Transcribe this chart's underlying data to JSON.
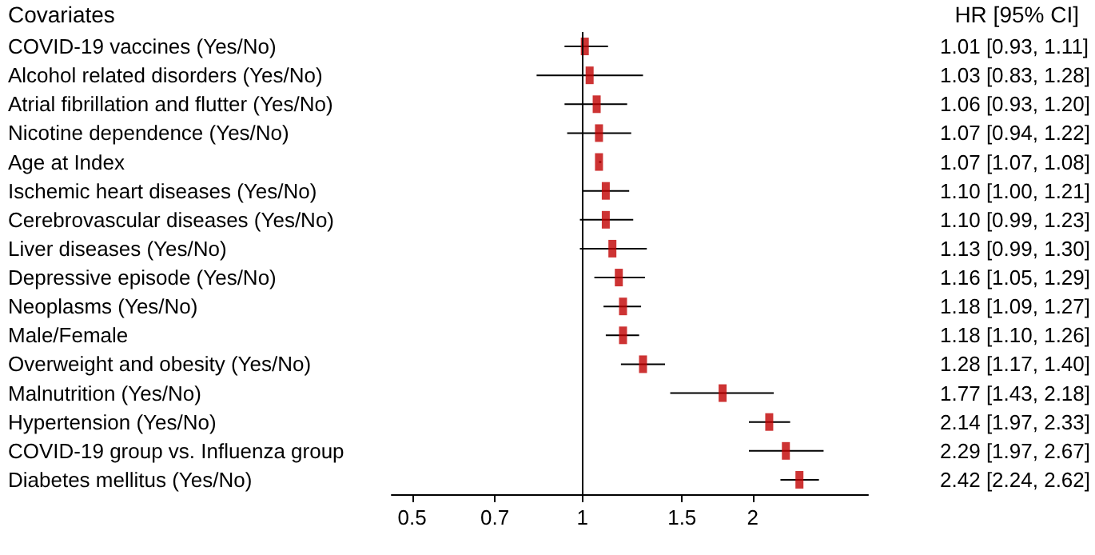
{
  "chart_data": {
    "type": "scatter",
    "orientation": "horizontal",
    "ylabel": "Covariates",
    "annotations": [
      "HR [95% CI]"
    ],
    "categories": [
      "COVID-19 vaccines (Yes/No)",
      "Alcohol related disorders (Yes/No)",
      "Atrial fibrillation and flutter (Yes/No)",
      "Nicotine dependence (Yes/No)",
      "Age at Index",
      "Ischemic heart diseases (Yes/No)",
      "Cerebrovascular diseases (Yes/No)",
      "Liver diseases (Yes/No)",
      "Depressive episode (Yes/No)",
      "Neoplasms (Yes/No)",
      "Male/Female",
      "Overweight and obesity (Yes/No)",
      "Malnutrition (Yes/No)",
      "Hypertension (Yes/No)",
      "COVID-19 group vs. Influenza group",
      "Diabetes mellitus (Yes/No)"
    ],
    "values": [
      1.01,
      1.03,
      1.06,
      1.07,
      1.07,
      1.1,
      1.1,
      1.13,
      1.16,
      1.18,
      1.18,
      1.28,
      1.77,
      2.14,
      2.29,
      2.42
    ],
    "errors": [
      [
        0.93,
        1.11
      ],
      [
        0.83,
        1.28
      ],
      [
        0.93,
        1.2
      ],
      [
        0.94,
        1.22
      ],
      [
        1.07,
        1.08
      ],
      [
        1.0,
        1.21
      ],
      [
        0.99,
        1.23
      ],
      [
        0.99,
        1.3
      ],
      [
        1.05,
        1.29
      ],
      [
        1.09,
        1.27
      ],
      [
        1.1,
        1.26
      ],
      [
        1.17,
        1.4
      ],
      [
        1.43,
        2.18
      ],
      [
        1.97,
        2.33
      ],
      [
        1.97,
        2.67
      ],
      [
        2.24,
        2.62
      ]
    ],
    "value_labels": [
      "1.01 [0.93, 1.11]",
      "1.03 [0.83, 1.28]",
      "1.06 [0.93, 1.20]",
      "1.07 [0.94, 1.22]",
      "1.07 [1.07, 1.08]",
      "1.10 [1.00, 1.21]",
      "1.10 [0.99, 1.23]",
      "1.13 [0.99, 1.30]",
      "1.16 [1.05, 1.29]",
      "1.18 [1.09, 1.27]",
      "1.18 [1.10, 1.26]",
      "1.28 [1.17, 1.40]",
      "1.77 [1.43, 2.18]",
      "2.14 [1.97, 2.33]",
      "2.29 [1.97, 2.67]",
      "2.42 [2.24, 2.62]"
    ],
    "color": "#c00000",
    "log": "x",
    "xlim": [
      0.46,
      3.2
    ],
    "xticks": [
      0.5,
      0.7,
      1,
      1.5,
      2
    ],
    "ref_lines": [
      {
        "axis": "x",
        "value": 1,
        "color": "#000000"
      }
    ],
    "grid": false,
    "marker": "square"
  }
}
